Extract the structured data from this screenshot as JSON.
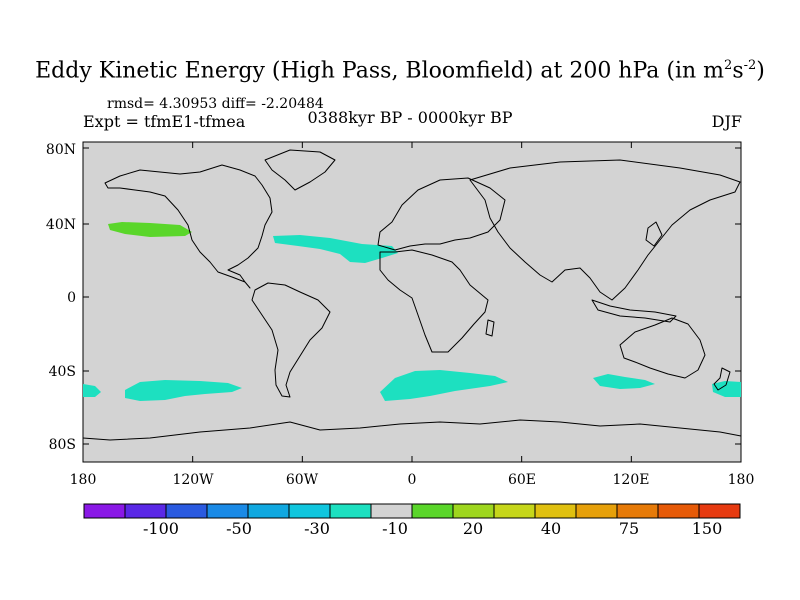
{
  "title": {
    "main": "Eddy Kinetic Energy (High Pass, Bloomfield) at 200 hPa (in m",
    "sup1": "2",
    "s": "s",
    "sup2": "-2",
    "close": ")"
  },
  "stats": "rmsd= 4.30953 diff= -2.20484",
  "expt": "Expt = tfmE1-tfmea",
  "period": "0388kyr BP - 0000kyr BP",
  "season": "DJF",
  "map": {
    "ocean_fill": "#d3d3d3",
    "coast_color": "#000000",
    "lat_labels": [
      "80N",
      "40N",
      "0",
      "40S",
      "80S"
    ],
    "lon_labels": [
      "180",
      "120W",
      "60W",
      "0",
      "60E",
      "120E",
      "180"
    ]
  },
  "anomalies": [
    {
      "name": "north-pacific-positive",
      "color": "#5ad62a"
    },
    {
      "name": "north-atlantic-negative",
      "color": "#1de0c0"
    },
    {
      "name": "south-pacific-negative",
      "color": "#1de0c0"
    },
    {
      "name": "south-atlantic-negative",
      "color": "#1de0c0"
    },
    {
      "name": "south-indian-negative",
      "color": "#1de0c0"
    },
    {
      "name": "tasman-negative",
      "color": "#1de0c0"
    },
    {
      "name": "dateline-west-negative",
      "color": "#1de0c0"
    }
  ],
  "colorbar": {
    "colors": [
      "#8a18e6",
      "#5a28e6",
      "#2a5ae0",
      "#1a8ae6",
      "#10a8e0",
      "#10c6de",
      "#1de0c0",
      "#d3d3d3",
      "#5ad62a",
      "#9ed61e",
      "#c6d61a",
      "#e0c010",
      "#e6a00a",
      "#e67a08",
      "#e65a08",
      "#e63a10"
    ],
    "labels": [
      "-100",
      "-50",
      "-30",
      "-10",
      "20",
      "40",
      "75",
      "150"
    ]
  }
}
